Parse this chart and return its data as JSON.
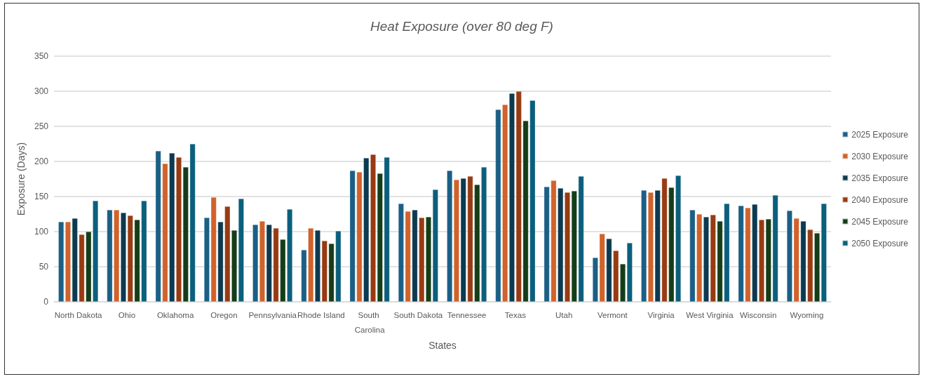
{
  "chart_data": {
    "type": "bar",
    "title": "Heat Exposure (over 80 deg F)",
    "xlabel": "States",
    "ylabel": "Exposure (Days)",
    "categories": [
      "North Dakota",
      "Ohio",
      "Oklahoma",
      "Oregon",
      "Pennsylvania",
      "Rhode Island",
      "South Carolina",
      "South Dakota",
      "Tennessee",
      "Texas",
      "Utah",
      "Vermont",
      "Virginia",
      "West Virginia",
      "Wisconsin",
      "Wyoming"
    ],
    "series": [
      {
        "name": "2025 Exposure",
        "color": "#1b5f85",
        "values": [
          114,
          131,
          215,
          120,
          110,
          74,
          187,
          140,
          187,
          274,
          164,
          63,
          159,
          131,
          137,
          130
        ]
      },
      {
        "name": "2030 Exposure",
        "color": "#d0622b",
        "values": [
          114,
          131,
          197,
          149,
          115,
          105,
          185,
          129,
          174,
          281,
          173,
          97,
          156,
          125,
          134,
          119
        ]
      },
      {
        "name": "2035 Exposure",
        "color": "#0c3a50",
        "values": [
          119,
          127,
          212,
          114,
          110,
          102,
          205,
          131,
          176,
          297,
          162,
          90,
          159,
          121,
          139,
          115
        ]
      },
      {
        "name": "2040 Exposure",
        "color": "#973b12",
        "values": [
          96,
          123,
          206,
          136,
          105,
          87,
          210,
          120,
          179,
          300,
          156,
          73,
          176,
          124,
          117,
          103
        ]
      },
      {
        "name": "2045 Exposure",
        "color": "#143d18",
        "values": [
          100,
          117,
          192,
          102,
          89,
          83,
          183,
          121,
          167,
          258,
          158,
          54,
          163,
          115,
          118,
          98
        ]
      },
      {
        "name": "2050 Exposure",
        "color": "#0b5f7c",
        "values": [
          144,
          144,
          225,
          147,
          132,
          101,
          206,
          160,
          192,
          287,
          179,
          84,
          180,
          140,
          152,
          140
        ]
      }
    ],
    "ylim": [
      0,
      350
    ],
    "yticks": [
      0,
      50,
      100,
      150,
      200,
      250,
      300,
      350
    ],
    "grid": "y",
    "legend": "right"
  }
}
